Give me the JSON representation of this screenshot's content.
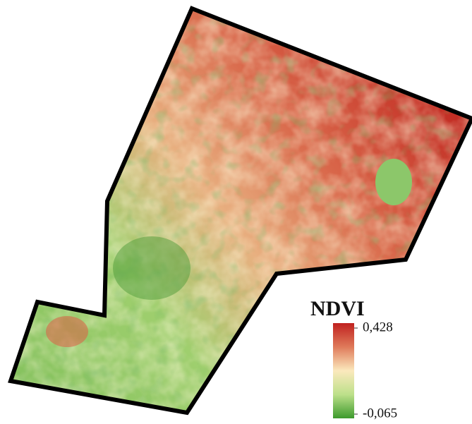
{
  "legend": {
    "title": "NDVI",
    "ticks": [
      {
        "value": 0.428,
        "label": "0,428"
      },
      {
        "value": -0.065,
        "label": "-0,065"
      }
    ]
  }
}
